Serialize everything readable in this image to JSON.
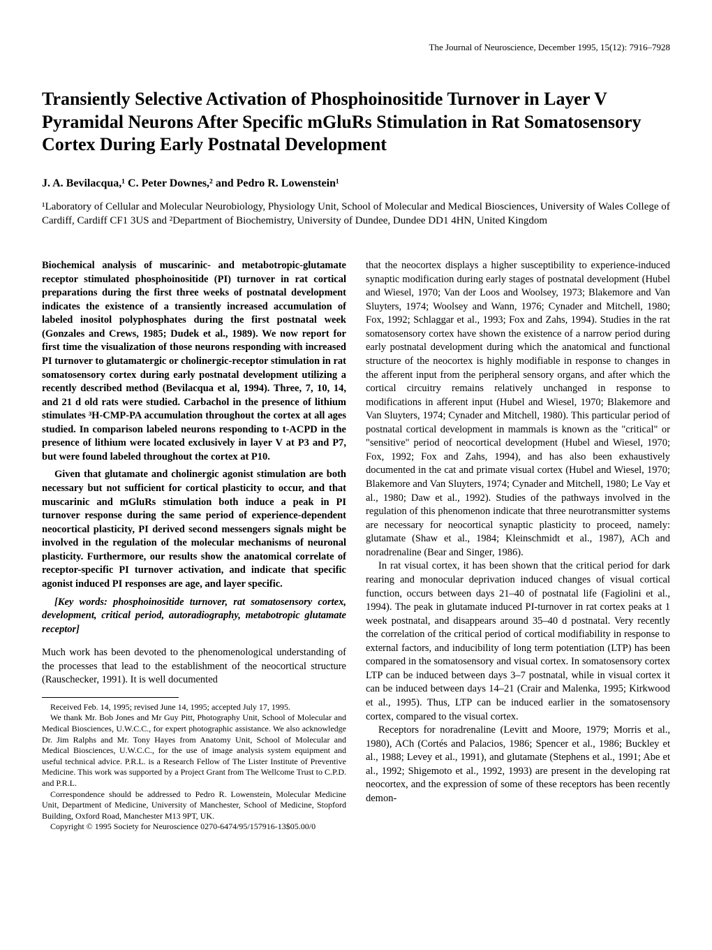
{
  "running_head": "The Journal of Neuroscience, December 1995, 15(12): 7916–7928",
  "title": "Transiently Selective Activation of Phosphoinositide Turnover in Layer V Pyramidal Neurons After Specific mGluRs Stimulation in Rat Somatosensory Cortex During Early Postnatal Development",
  "authors": "J. A. Bevilacqua,¹ C. Peter Downes,² and Pedro R. Lowenstein¹",
  "affiliations": "¹Laboratory of Cellular and Molecular Neurobiology, Physiology Unit, School of Molecular and Medical Biosciences, University of Wales College of Cardiff, Cardiff CF1 3US and ²Department of Biochemistry, University of Dundee, Dundee DD1 4HN, United Kingdom",
  "abstract_p1": "Biochemical analysis of muscarinic- and metabotropic-glutamate receptor stimulated phosphoinositide (PI) turnover in rat cortical preparations during the first three weeks of postnatal development indicates the existence of a transiently increased accumulation of labeled inositol polyphosphates during the first postnatal week (Gonzales and Crews, 1985; Dudek et al., 1989). We now report for first time the visualization of those neurons responding with increased PI turnover to glutamatergic or cholinergic-receptor stimulation in rat somatosensory cortex during early postnatal development utilizing a recently described method (Bevilacqua et al, 1994). Three, 7, 10, 14, and 21 d old rats were studied. Carbachol in the presence of lithium stimulates ³H-CMP-PA accumulation throughout the cortex at all ages studied. In comparison labeled neurons responding to t-ACPD in the presence of lithium were located exclusively in layer V at P3 and P7, but were found labeled throughout the cortex at P10.",
  "abstract_p2": "Given that glutamate and cholinergic agonist stimulation are both necessary but not sufficient for cortical plasticity to occur, and that muscarinic and mGluRs stimulation both induce a peak in PI turnover response during the same period of experience-dependent neocortical plasticity, PI derived second messengers signals might be involved in the regulation of the molecular mechanisms of neuronal plasticity. Furthermore, our results show the anatomical correlate of receptor-specific PI turnover activation, and indicate that specific agonist induced PI responses are age, and layer specific.",
  "keywords": "[Key words: phosphoinositide turnover, rat somatosensory cortex, development, critical period, autoradiography, metabotropic glutamate receptor]",
  "intro_p1": "Much work has been devoted to the phenomenological understanding of the processes that lead to the establishment of the neocortical structure (Rauschecker, 1991). It is well documented",
  "footnote_received": "Received Feb. 14, 1995; revised June 14, 1995; accepted July 17, 1995.",
  "footnote_thanks": "We thank Mr. Bob Jones and Mr Guy Pitt, Photography Unit, School of Molecular and Medical Biosciences, U.W.C.C., for expert photographic assistance. We also acknowledge Dr. Jim Ralphs and Mr. Tony Hayes from Anatomy Unit, School of Molecular and Medical Biosciences, U.W.C.C., for the use of image analysis system equipment and useful technical advice. P.R.L. is a Research Fellow of The Lister Institute of Preventive Medicine. This work was supported by a Project Grant from The Wellcome Trust to C.P.D. and P.R.L.",
  "footnote_correspondence": "Correspondence should be addressed to Pedro R. Lowenstein, Molecular Medicine Unit, Department of Medicine, University of Manchester, School of Medicine, Stopford Building, Oxford Road, Manchester M13 9PT, UK.",
  "footnote_copyright": "Copyright © 1995 Society for Neuroscience 0270-6474/95/157916-13$05.00/0",
  "col2_p1": "that the neocortex displays a higher susceptibility to experience-induced synaptic modification during early stages of postnatal development (Hubel and Wiesel, 1970; Van der Loos and Woolsey, 1973; Blakemore and Van Sluyters, 1974; Woolsey and Wann, 1976; Cynader and Mitchell, 1980; Fox, 1992; Schlaggar et al., 1993; Fox and Zahs, 1994). Studies in the rat somatosensory cortex have shown the existence of a narrow period during early postnatal development during which the anatomical and functional structure of the neocortex is highly modifiable in response to changes in the afferent input from the peripheral sensory organs, and after which the cortical circuitry remains relatively unchanged in response to modifications in afferent input (Hubel and Wiesel, 1970; Blakemore and Van Sluyters, 1974; Cynader and Mitchell, 1980). This particular period of postnatal cortical development in mammals is known as the \"critical\" or \"sensitive\" period of neocortical development (Hubel and Wiesel, 1970; Fox, 1992; Fox and Zahs, 1994), and has also been exhaustively documented in the cat and primate visual cortex (Hubel and Wiesel, 1970; Blakemore and Van Sluyters, 1974; Cynader and Mitchell, 1980; Le Vay et al., 1980; Daw et al., 1992). Studies of the pathways involved in the regulation of this phenomenon indicate that three neurotransmitter systems are necessary for neocortical synaptic plasticity to proceed, namely: glutamate (Shaw et al., 1984; Kleinschmidt et al., 1987), ACh and noradrenaline (Bear and Singer, 1986).",
  "col2_p2": "In rat visual cortex, it has been shown that the critical period for dark rearing and monocular deprivation induced changes of visual cortical function, occurs between days 21–40 of postnatal life (Fagiolini et al., 1994). The peak in glutamate induced PI-turnover in rat cortex peaks at 1 week postnatal, and disappears around 35–40 d postnatal. Very recently the correlation of the critical period of cortical modifiability in response to external factors, and inducibility of long term potentiation (LTP) has been compared in the somatosensory and visual cortex. In somatosensory cortex LTP can be induced between days 3–7 postnatal, while in visual cortex it can be induced between days 14–21 (Crair and Malenka, 1995; Kirkwood et al., 1995). Thus, LTP can be induced earlier in the somatosensory cortex, compared to the visual cortex.",
  "col2_p3": "Receptors for noradrenaline (Levitt and Moore, 1979; Morris et al., 1980), ACh (Cortés and Palacios, 1986; Spencer et al., 1986; Buckley et al., 1988; Levey et al., 1991), and glutamate (Stephens et al., 1991; Abe et al., 1992; Shigemoto et al., 1992, 1993) are present in the developing rat neocortex, and the expression of some of these receptors has been recently demon-"
}
